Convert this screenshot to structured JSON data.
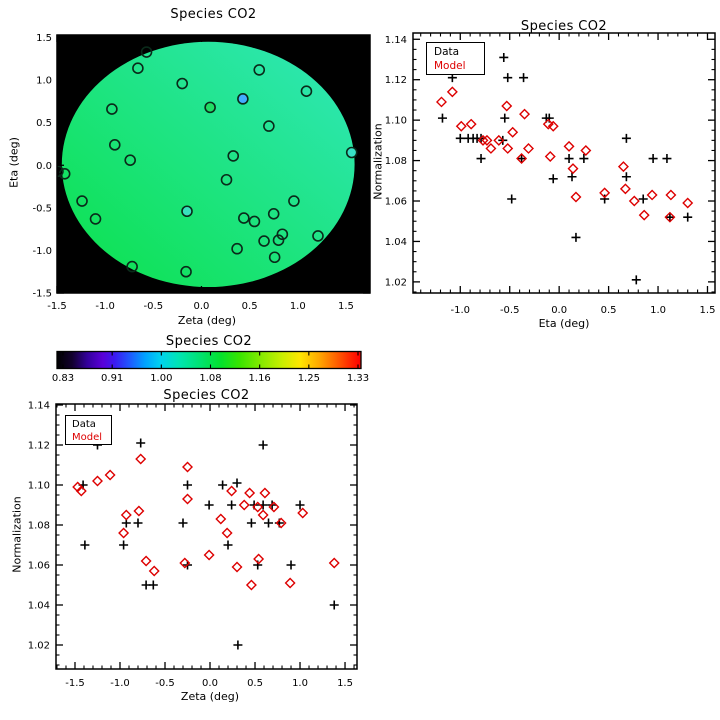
{
  "page": {
    "background": "#ffffff",
    "text_color": "#000000",
    "data_color": "#000000",
    "model_color": "#dd0000"
  },
  "chart_data": [
    {
      "id": "map",
      "type": "scatter",
      "title": "Species CO2",
      "xlabel": "Zeta (deg)",
      "ylabel": "Eta (deg)",
      "xlim": [
        -1.5,
        1.75
      ],
      "ylim": [
        -1.5,
        1.53
      ],
      "xticks": [
        -1.5,
        -1.0,
        -0.5,
        0.0,
        0.5,
        1.0,
        1.5
      ],
      "xtick_labels": [
        "-1.5",
        "-1.0",
        "-0.5",
        "0.0",
        "0.5",
        "1.0",
        "1.5"
      ],
      "yticks": [
        -1.5,
        -1.0,
        -0.5,
        0.0,
        0.5,
        1.0,
        1.5
      ],
      "ytick_labels": [
        "-1.5",
        "-1.0",
        "-0.5",
        "0.0",
        "0.5",
        "1.0",
        "1.5"
      ],
      "xminor": 0.1,
      "yminor": 0.1,
      "background": "#000000",
      "disk": {
        "cx": 0.07,
        "cy": 0.01,
        "rx": 1.52,
        "ry": 1.44,
        "color_bottom_left": "#0be14a",
        "color_top_right": "#31e7bb"
      },
      "marker": "circle",
      "marker_outline": "#0a2a1a",
      "points": [
        [
          -0.57,
          1.33
        ],
        [
          -0.66,
          1.14
        ],
        [
          0.6,
          1.12
        ],
        [
          -0.2,
          0.96
        ],
        [
          1.09,
          0.87
        ],
        [
          0.43,
          0.78,
          "#42adff"
        ],
        [
          0.09,
          0.68,
          "#21dd64"
        ],
        [
          -0.93,
          0.66
        ],
        [
          0.7,
          0.46
        ],
        [
          -0.9,
          0.24
        ],
        [
          1.56,
          0.15,
          "#38e2c6"
        ],
        [
          0.33,
          0.11
        ],
        [
          -0.74,
          0.06
        ],
        [
          -1.49,
          -0.07
        ],
        [
          -1.42,
          -0.1
        ],
        [
          0.26,
          -0.17
        ],
        [
          -1.24,
          -0.42
        ],
        [
          -0.15,
          -0.54,
          "#38e0be"
        ],
        [
          -1.1,
          -0.63
        ],
        [
          0.96,
          -0.42
        ],
        [
          0.44,
          -0.62
        ],
        [
          0.55,
          -0.66
        ],
        [
          0.75,
          -0.57
        ],
        [
          0.84,
          -0.81
        ],
        [
          0.8,
          -0.88
        ],
        [
          1.21,
          -0.83
        ],
        [
          0.65,
          -0.89
        ],
        [
          0.37,
          -0.98
        ],
        [
          0.76,
          -1.08
        ],
        [
          -0.72,
          -1.19
        ],
        [
          -0.16,
          -1.25
        ]
      ]
    },
    {
      "id": "norm_vs_eta",
      "type": "scatter",
      "title": "Species CO2",
      "xlabel": "Eta (deg)",
      "ylabel": "Normalization",
      "xlim": [
        -1.478,
        1.576
      ],
      "ylim": [
        1.0145,
        1.1431
      ],
      "xticks": [
        -1.0,
        -0.5,
        0.0,
        0.5,
        1.0,
        1.5
      ],
      "xtick_labels": [
        "-1.0",
        "-0.5",
        "0.0",
        "0.5",
        "1.0",
        "1.5"
      ],
      "yticks": [
        1.02,
        1.04,
        1.06,
        1.08,
        1.1,
        1.12,
        1.14
      ],
      "ytick_labels": [
        "1.02",
        "1.04",
        "1.06",
        "1.08",
        "1.10",
        "1.12",
        "1.14"
      ],
      "xminor": 0.1,
      "yminor": 0.005,
      "legend": {
        "labels": [
          "Data",
          "Model"
        ],
        "colors": [
          "#000000",
          "#dd0000"
        ]
      },
      "series": [
        {
          "name": "Data",
          "marker": "plus",
          "color": "#000000",
          "points": [
            [
              -1.18,
              1.101
            ],
            [
              -1.08,
              1.121
            ],
            [
              -1.0,
              1.091
            ],
            [
              -0.92,
              1.091
            ],
            [
              -0.87,
              1.091
            ],
            [
              -0.83,
              1.091
            ],
            [
              -0.79,
              1.091
            ],
            [
              -0.79,
              1.081
            ],
            [
              -0.57,
              1.09
            ],
            [
              -0.56,
              1.131
            ],
            [
              -0.55,
              1.101
            ],
            [
              -0.52,
              1.121
            ],
            [
              -0.48,
              1.061
            ],
            [
              -0.38,
              1.081
            ],
            [
              -0.36,
              1.121
            ],
            [
              -0.13,
              1.101
            ],
            [
              -0.1,
              1.101
            ],
            [
              -0.06,
              1.071
            ],
            [
              0.1,
              1.081
            ],
            [
              0.13,
              1.072
            ],
            [
              0.17,
              1.042
            ],
            [
              0.25,
              1.081
            ],
            [
              0.46,
              1.061
            ],
            [
              0.68,
              1.091
            ],
            [
              0.68,
              1.072
            ],
            [
              0.78,
              1.021
            ],
            [
              0.85,
              1.061
            ],
            [
              0.95,
              1.081
            ],
            [
              1.09,
              1.081
            ],
            [
              1.12,
              1.052
            ],
            [
              1.3,
              1.052
            ]
          ]
        },
        {
          "name": "Model",
          "marker": "diamond",
          "color": "#dd0000",
          "points": [
            [
              -1.19,
              1.109
            ],
            [
              -1.08,
              1.114
            ],
            [
              -0.99,
              1.097
            ],
            [
              -0.89,
              1.098
            ],
            [
              -0.77,
              1.09
            ],
            [
              -0.73,
              1.09
            ],
            [
              -0.69,
              1.086
            ],
            [
              -0.61,
              1.09
            ],
            [
              -0.53,
              1.107
            ],
            [
              -0.52,
              1.086
            ],
            [
              -0.47,
              1.094
            ],
            [
              -0.38,
              1.081
            ],
            [
              -0.35,
              1.103
            ],
            [
              -0.31,
              1.086
            ],
            [
              -0.11,
              1.098
            ],
            [
              -0.09,
              1.082
            ],
            [
              -0.06,
              1.097
            ],
            [
              0.1,
              1.087
            ],
            [
              0.14,
              1.076
            ],
            [
              0.17,
              1.062
            ],
            [
              0.27,
              1.085
            ],
            [
              0.46,
              1.064
            ],
            [
              0.65,
              1.077
            ],
            [
              0.67,
              1.066
            ],
            [
              0.76,
              1.06
            ],
            [
              0.86,
              1.053
            ],
            [
              0.94,
              1.063
            ],
            [
              1.12,
              1.052
            ],
            [
              1.13,
              1.063
            ],
            [
              1.3,
              1.059
            ]
          ]
        }
      ]
    },
    {
      "id": "colorbar",
      "type": "colorbar",
      "title": "Species CO2",
      "ticks": [
        "0.83",
        "0.91",
        "1.00",
        "1.08",
        "1.16",
        "1.25",
        "1.33"
      ],
      "stops": [
        [
          0.0,
          "#000000"
        ],
        [
          0.05,
          "#12002e"
        ],
        [
          0.1,
          "#33009c"
        ],
        [
          0.15,
          "#5a00d8"
        ],
        [
          0.19,
          "#3b1af0"
        ],
        [
          0.24,
          "#1e5aff"
        ],
        [
          0.29,
          "#00a2ff"
        ],
        [
          0.34,
          "#00d2f0"
        ],
        [
          0.4,
          "#00e4b4"
        ],
        [
          0.47,
          "#00e372"
        ],
        [
          0.54,
          "#04e12c"
        ],
        [
          0.6,
          "#38e400"
        ],
        [
          0.67,
          "#84ea00"
        ],
        [
          0.74,
          "#c8ee00"
        ],
        [
          0.8,
          "#ffe600"
        ],
        [
          0.86,
          "#ffaa00"
        ],
        [
          0.92,
          "#ff6000"
        ],
        [
          0.97,
          "#ff2000"
        ],
        [
          1.0,
          "#fe0000"
        ]
      ]
    },
    {
      "id": "norm_vs_zeta",
      "type": "scatter",
      "title": "Species CO2",
      "xlabel": "Zeta (deg)",
      "ylabel": "Normalization",
      "xlim": [
        -1.711,
        1.633
      ],
      "ylim": [
        1.008,
        1.1405
      ],
      "xticks": [
        -1.5,
        -1.0,
        -0.5,
        0.0,
        0.5,
        1.0,
        1.5
      ],
      "xtick_labels": [
        "-1.5",
        "-1.0",
        "-0.5",
        "0.0",
        "0.5",
        "1.0",
        "1.5"
      ],
      "yticks": [
        1.02,
        1.04,
        1.06,
        1.08,
        1.1,
        1.12,
        1.14
      ],
      "ytick_labels": [
        "1.02",
        "1.04",
        "1.06",
        "1.08",
        "1.10",
        "1.12",
        "1.14"
      ],
      "xminor": 0.1,
      "yminor": 0.005,
      "legend": {
        "labels": [
          "Data",
          "Model"
        ],
        "colors": [
          "#000000",
          "#dd0000"
        ]
      },
      "series": [
        {
          "name": "Data",
          "marker": "plus",
          "color": "#000000",
          "points": [
            [
              -1.41,
              1.1
            ],
            [
              -1.39,
              1.07
            ],
            [
              -1.25,
              1.12
            ],
            [
              -1.17,
              1.131
            ],
            [
              -0.96,
              1.07
            ],
            [
              -0.93,
              1.081
            ],
            [
              -0.8,
              1.081
            ],
            [
              -0.77,
              1.121
            ],
            [
              -0.71,
              1.05
            ],
            [
              -0.63,
              1.05
            ],
            [
              -0.3,
              1.081
            ],
            [
              -0.25,
              1.1
            ],
            [
              -0.25,
              1.06
            ],
            [
              -0.01,
              1.09
            ],
            [
              0.14,
              1.1
            ],
            [
              0.2,
              1.07
            ],
            [
              0.24,
              1.09
            ],
            [
              0.3,
              1.101
            ],
            [
              0.31,
              1.02
            ],
            [
              0.46,
              1.081
            ],
            [
              0.49,
              1.09
            ],
            [
              0.53,
              1.06
            ],
            [
              0.59,
              1.12
            ],
            [
              0.59,
              1.09
            ],
            [
              0.65,
              1.081
            ],
            [
              0.69,
              1.09
            ],
            [
              0.77,
              1.081
            ],
            [
              0.9,
              1.06
            ],
            [
              1.0,
              1.09
            ],
            [
              1.38,
              1.04
            ]
          ]
        },
        {
          "name": "Model",
          "marker": "diamond",
          "color": "#dd0000",
          "points": [
            [
              -1.47,
              1.099
            ],
            [
              -1.43,
              1.097
            ],
            [
              -1.25,
              1.102
            ],
            [
              -1.11,
              1.105
            ],
            [
              -0.96,
              1.076
            ],
            [
              -0.93,
              1.085
            ],
            [
              -0.79,
              1.087
            ],
            [
              -0.77,
              1.113
            ],
            [
              -0.71,
              1.062
            ],
            [
              -0.62,
              1.057
            ],
            [
              -0.28,
              1.061
            ],
            [
              -0.25,
              1.109
            ],
            [
              -0.25,
              1.093
            ],
            [
              -0.01,
              1.065
            ],
            [
              0.12,
              1.083
            ],
            [
              0.19,
              1.076
            ],
            [
              0.24,
              1.097
            ],
            [
              0.3,
              1.059
            ],
            [
              0.38,
              1.09
            ],
            [
              0.44,
              1.096
            ],
            [
              0.46,
              1.05
            ],
            [
              0.53,
              1.089
            ],
            [
              0.54,
              1.063
            ],
            [
              0.59,
              1.085
            ],
            [
              0.61,
              1.096
            ],
            [
              0.71,
              1.089
            ],
            [
              0.79,
              1.081
            ],
            [
              0.89,
              1.051
            ],
            [
              1.03,
              1.086
            ],
            [
              1.38,
              1.061
            ]
          ]
        }
      ]
    }
  ]
}
